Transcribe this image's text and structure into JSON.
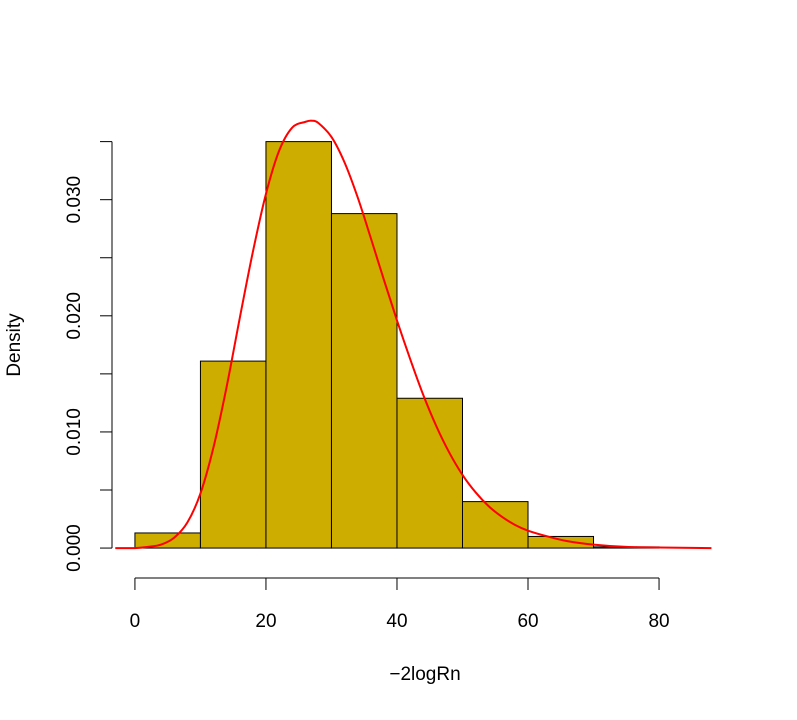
{
  "chart_data": {
    "type": "bar",
    "subtype": "histogram_with_density_curve",
    "title": "",
    "xlabel": "−2logRn",
    "ylabel": "Density",
    "xlim": [
      -3.5,
      89
    ],
    "ylim": [
      -0.0012,
      0.036
    ],
    "x_ticks": [
      0,
      20,
      40,
      60,
      80
    ],
    "x_tick_labels": [
      "0",
      "20",
      "40",
      "60",
      "80"
    ],
    "y_ticks": [
      0,
      0.005,
      0.01,
      0.015,
      0.02,
      0.025,
      0.03,
      0.035
    ],
    "y_tick_labels": [
      "0.000",
      "",
      "0.010",
      "",
      "0.020",
      "",
      "0.030",
      ""
    ],
    "grid": false,
    "bar_color": "#CDAD00",
    "bar_edge_color": "#000000",
    "curve_color": "#FF0000",
    "bins": [
      {
        "start": 0,
        "end": 10,
        "density": 0.0013
      },
      {
        "start": 10,
        "end": 20,
        "density": 0.0161
      },
      {
        "start": 20,
        "end": 30,
        "density": 0.035
      },
      {
        "start": 30,
        "end": 40,
        "density": 0.0288
      },
      {
        "start": 40,
        "end": 50,
        "density": 0.0129
      },
      {
        "start": 50,
        "end": 60,
        "density": 0.004
      },
      {
        "start": 60,
        "end": 70,
        "density": 0.001
      },
      {
        "start": 70,
        "end": 80,
        "density": 0.0001
      }
    ],
    "density_curve": {
      "x": [
        -3,
        0,
        2,
        4,
        6,
        8,
        10,
        12,
        14,
        16,
        18,
        20,
        22,
        24,
        26,
        27,
        28,
        30,
        32,
        34,
        36,
        38,
        40,
        42,
        44,
        46,
        48,
        50,
        52,
        54,
        56,
        58,
        60,
        63,
        66,
        70,
        75,
        80,
        85,
        88
      ],
      "y": [
        0,
        0,
        0.0001,
        0.0003,
        0.0009,
        0.0022,
        0.0047,
        0.0087,
        0.0139,
        0.0198,
        0.0255,
        0.0305,
        0.0342,
        0.0362,
        0.0367,
        0.0368,
        0.0366,
        0.0354,
        0.0332,
        0.0302,
        0.0267,
        0.0231,
        0.0196,
        0.0163,
        0.0132,
        0.0105,
        0.0082,
        0.0063,
        0.0048,
        0.0036,
        0.0027,
        0.002,
        0.0015,
        0.001,
        0.0006,
        0.0003,
        0.0001,
        5e-05,
        2e-05,
        0
      ]
    }
  }
}
